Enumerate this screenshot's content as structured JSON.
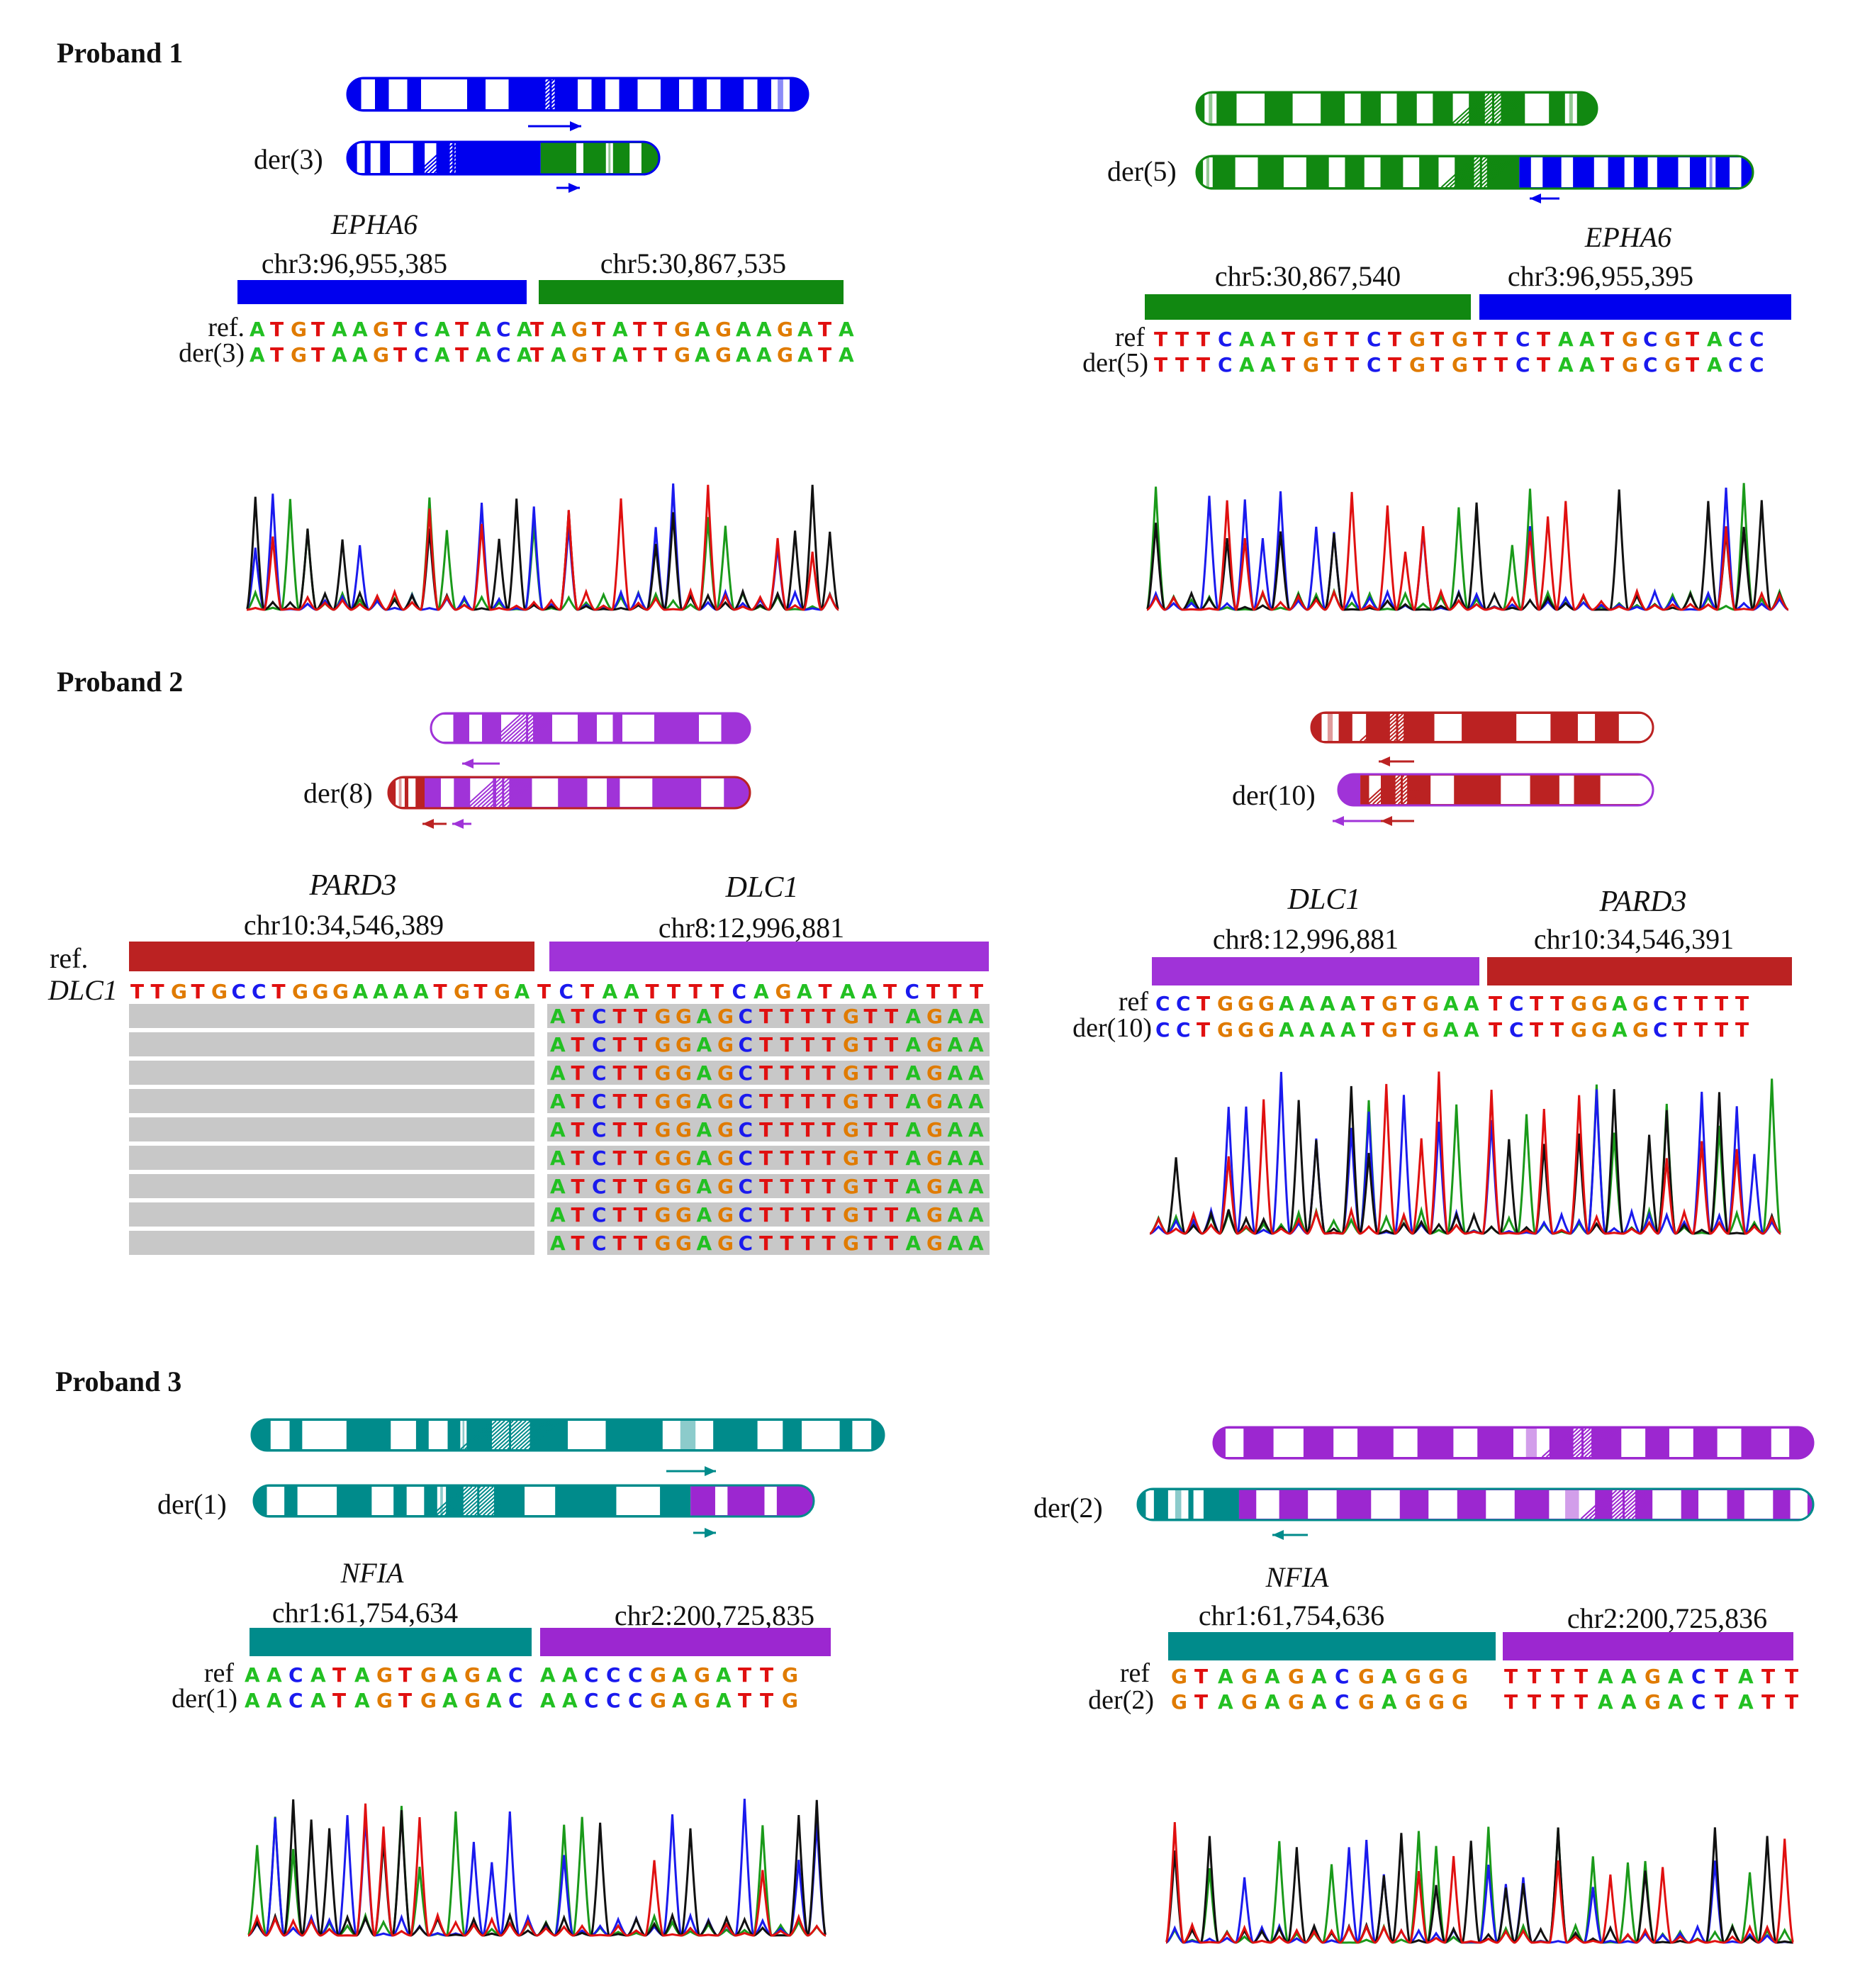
{
  "colors": {
    "chr3": "#0000ee",
    "chr5": "#118811",
    "chr8": "#a033d8",
    "chr10": "#bb2222",
    "chr1": "#008b8b",
    "chr2": "#9c27d0",
    "base_A": "#22c022",
    "base_C": "#1a1aee",
    "base_G": "#e07b00",
    "base_T": "#e01010",
    "read_bg": "#c8c8c8"
  },
  "probands": [
    {
      "title": "Proband 1"
    },
    {
      "title": "Proband 2"
    },
    {
      "title": "Proband 3"
    }
  ],
  "panels": {
    "p1l": {
      "der": "der(3)",
      "gene": "EPHA6",
      "left_coord": "chr3:96,955,385",
      "right_coord": "chr5:30,867,535",
      "ref_label": "ref.",
      "der_label": "der(3)",
      "left_seq": "ATGTAAGTCATACA",
      "right_seq": "TAGTATTGAGAAGATA"
    },
    "p1r": {
      "der": "der(5)",
      "gene": "EPHA6",
      "left_coord": "chr5:30,867,540",
      "right_coord": "chr3:96,955,395",
      "ref_label": "ref",
      "der_label": "der(5)",
      "left_seq": "TTTCAATGTTCTGTG",
      "right_seq": "TTCTAATGCGTACC"
    },
    "p2l": {
      "der": "der(8)",
      "gene_left": "PARD3",
      "gene_right": "DLC1",
      "left_coord": "chr10:34,546,389",
      "right_coord": "chr8:12,996,881",
      "ref_label": "ref.",
      "row_label": "DLC1",
      "left_seq": "TTGTGCCTGGGAAAATGTGA",
      "right_seq": "TCTAATTTTCAGATAATCTTT",
      "read_seq": "ATCTTGGAGCTTTTGTTAGAA",
      "read_count": 9
    },
    "p2r": {
      "der": "der(10)",
      "gene_left": "DLC1",
      "gene_right": "PARD3",
      "left_coord": "chr8:12,996,881",
      "right_coord": "chr10:34,546,391",
      "ref_label": "ref",
      "der_label": "der(10)",
      "left_seq": "CCTGGGAAAATGTGAA",
      "right_seq": "TCTTGGAGCTTTT"
    },
    "p3l": {
      "der": "der(1)",
      "gene": "NFIA",
      "left_coord": "chr1:61,754,634",
      "right_coord": "chr2:200,725,835",
      "ref_label": "ref",
      "der_label": "der(1)",
      "left_seq": "AACATAGTGAGAC",
      "right_seq": "AACCCGAGATTG"
    },
    "p3r": {
      "der": "der(2)",
      "gene": "NFIA",
      "left_coord": "chr1:61,754,636",
      "right_coord": "chr2:200,725,836",
      "ref_label": "ref",
      "der_label": "der(2)",
      "left_seq": "GTAGAGACGAGGG",
      "right_seq": "TTTTAAGACTATT"
    }
  }
}
